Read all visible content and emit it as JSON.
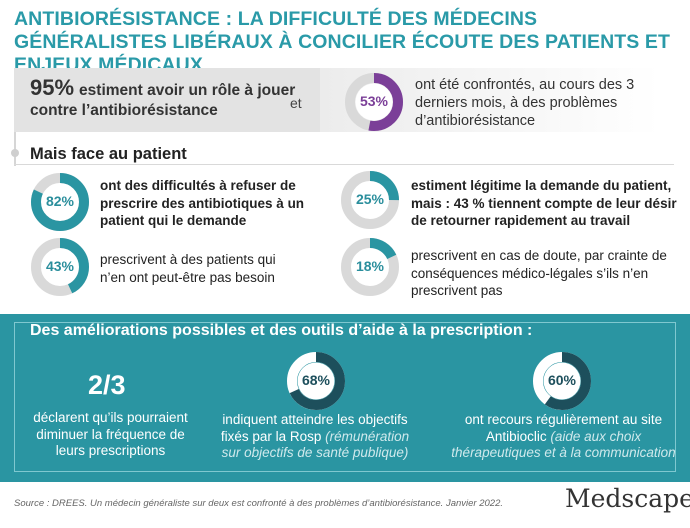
{
  "title": "ANTIBIORÉSISTANCE : LA DIFFICULTÉ DES MÉDECINS GÉNÉRALISTES LIBÉRAUX À CONCILIER ÉCOUTE DES PATIENTS ET ENJEUX MÉDICAUX",
  "top": {
    "pct_left": "95%",
    "text_left": "estiment avoir un rôle à jouer contre l’antibiorésistance",
    "connector": "et",
    "pct_right": "53%",
    "text_right": "ont été confrontés, au cours des 3 derniers mois, à des problèmes d’antibiorésistance"
  },
  "section_title": "Mais face au patient",
  "items": [
    {
      "pct": "82%",
      "text": "ont des difficultés à refuser de prescrire des antibiotiques à un patient qui le demande"
    },
    {
      "pct": "43%",
      "text": "prescrivent à des patients qui n’en ont peut-être pas besoin"
    },
    {
      "pct": "25%",
      "text": "estiment légitime la demande du patient, mais :  43 % tiennent compte de leur désir de retourner rapidement au travail"
    },
    {
      "pct": "18%",
      "text": "prescrivent en cas de doute, par crainte de conséquences médico-légales s’ils n’en prescrivent pas"
    }
  ],
  "improvements": {
    "title": "Des améliorations possibles et des outils d’aide à la prescription :",
    "col1": {
      "value": "2/3",
      "text": "déclarent qu’ils pourraient diminuer la fréquence de leurs prescriptions"
    },
    "col2": {
      "pct": "68%",
      "text": "indiquent atteindre les objectifs fixés par la Rosp",
      "note": "(rémunération sur objectifs de santé publique)"
    },
    "col3": {
      "pct": "60%",
      "text": "ont recours régulièrement au site Antibioclic",
      "note": "(aide aux choix thérapeutiques et à la communication"
    }
  },
  "source": "Source : DREES. Un médecin généraliste sur deux est confronté à des problèmes d’antibiorésistance. Janvier 2022.",
  "logo": "Medscape",
  "colors": {
    "teal": "#2a95a2",
    "purple": "#7b3f98",
    "dark_teal": "#1d4f5c"
  }
}
